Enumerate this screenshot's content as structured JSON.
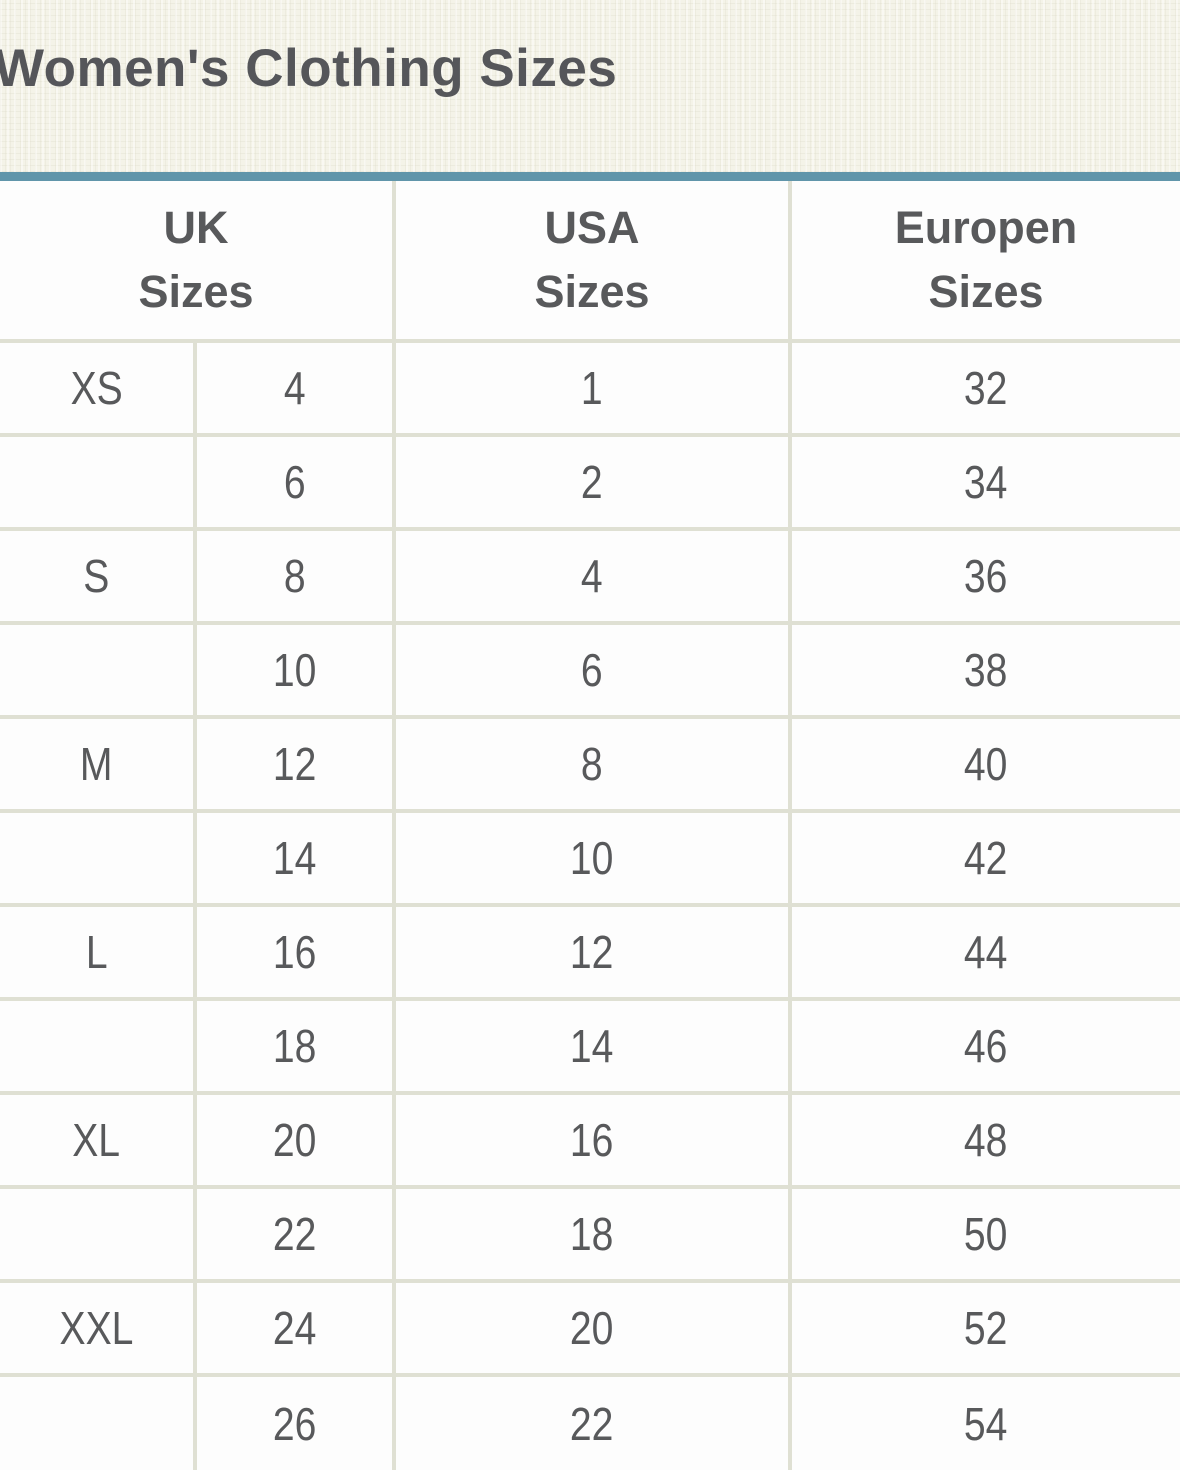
{
  "header": {
    "title": "Women's Clothing Sizes"
  },
  "table": {
    "columns": [
      {
        "label": "UK\nSizes"
      },
      {
        "label": "USA\nSizes"
      },
      {
        "label": "Europen\nSizes"
      }
    ],
    "rows": [
      {
        "letter": "XS",
        "uk": "4",
        "usa": "1",
        "eu": "32"
      },
      {
        "letter": "",
        "uk": "6",
        "usa": "2",
        "eu": "34"
      },
      {
        "letter": "S",
        "uk": "8",
        "usa": "4",
        "eu": "36"
      },
      {
        "letter": "",
        "uk": "10",
        "usa": "6",
        "eu": "38"
      },
      {
        "letter": "M",
        "uk": "12",
        "usa": "8",
        "eu": "40"
      },
      {
        "letter": "",
        "uk": "14",
        "usa": "10",
        "eu": "42"
      },
      {
        "letter": "L",
        "uk": "16",
        "usa": "12",
        "eu": "44"
      },
      {
        "letter": "",
        "uk": "18",
        "usa": "14",
        "eu": "46"
      },
      {
        "letter": "XL",
        "uk": "20",
        "usa": "16",
        "eu": "48"
      },
      {
        "letter": "",
        "uk": "22",
        "usa": "18",
        "eu": "50"
      },
      {
        "letter": "XXL",
        "uk": "24",
        "usa": "20",
        "eu": "52"
      },
      {
        "letter": "",
        "uk": "26",
        "usa": "22",
        "eu": "54"
      }
    ]
  },
  "colors": {
    "accent": "#6095aa",
    "border": "#dfe0d3",
    "header_bg": "#f4f3e8",
    "cell_bg": "#fdfdfd",
    "text": "#58595b",
    "title_text": "#55565a"
  }
}
